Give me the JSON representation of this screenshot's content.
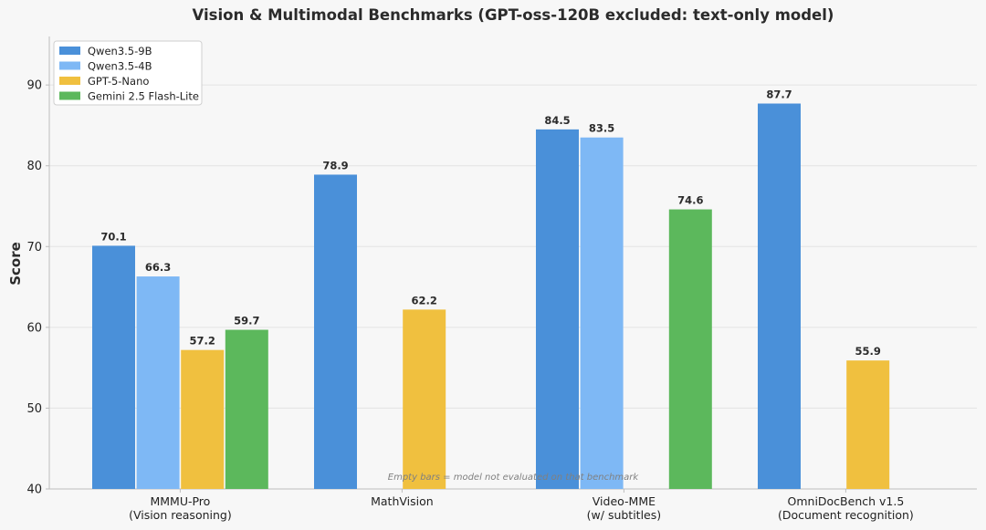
{
  "chart_data": {
    "type": "bar",
    "title": "Vision & Multimodal Benchmarks (GPT-oss-120B excluded: text-only model)",
    "xlabel": "",
    "ylabel": "Score",
    "ylim": [
      40,
      96
    ],
    "yticks": [
      40,
      50,
      60,
      70,
      80,
      90
    ],
    "grid": true,
    "legend_position": "top-left",
    "categories": [
      [
        "MMMU-Pro",
        "(Vision reasoning)"
      ],
      [
        "MathVision"
      ],
      [
        "Video-MME",
        "(w/ subtitles)"
      ],
      [
        "OmniDocBench v1.5",
        "(Document recognition)"
      ]
    ],
    "series": [
      {
        "name": "Qwen3.5-9B",
        "color": "#4a90d9",
        "values": [
          70.1,
          78.9,
          84.5,
          87.7
        ]
      },
      {
        "name": "Qwen3.5-4B",
        "color": "#7eb8f5",
        "values": [
          66.3,
          null,
          83.5,
          null
        ]
      },
      {
        "name": "GPT-5-Nano",
        "color": "#f0c03f",
        "values": [
          57.2,
          62.2,
          null,
          55.9
        ]
      },
      {
        "name": "Gemini 2.5 Flash-Lite",
        "color": "#5cb85c",
        "values": [
          59.7,
          null,
          74.6,
          null
        ]
      }
    ],
    "annotation": "Empty bars = model not evaluated on that benchmark"
  }
}
